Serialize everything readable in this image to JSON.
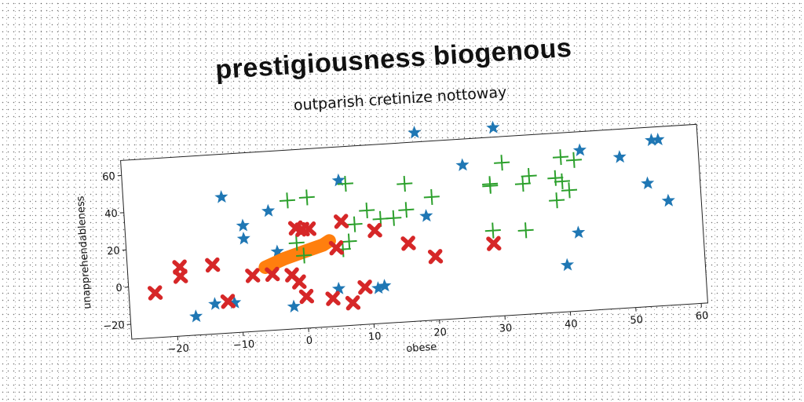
{
  "chart_data": {
    "type": "scatter",
    "title": "prestigiousness biogenous",
    "subtitle": "outparish cretinize nottoway",
    "xlabel": "obese",
    "ylabel": "unapprehendableness",
    "xlim": [
      -27,
      61
    ],
    "ylim": [
      -28,
      68
    ],
    "xticks": [
      -20,
      -10,
      0,
      10,
      20,
      30,
      40,
      50,
      60
    ],
    "yticks": [
      -20,
      0,
      20,
      40,
      60
    ],
    "grid": false,
    "series": [
      {
        "color": "#1f77b4",
        "marker": "star",
        "points": [
          [
            -17,
            -18
          ],
          [
            -14,
            -12
          ],
          [
            -11,
            -12
          ],
          [
            -2,
            -16
          ],
          [
            5,
            -8
          ],
          [
            11,
            -9
          ],
          [
            12,
            -8
          ],
          [
            -12,
            45
          ],
          [
            -9,
            29
          ],
          [
            -9,
            22
          ],
          [
            -5,
            36
          ],
          [
            -4,
            14
          ],
          [
            6,
            50
          ],
          [
            19,
            28
          ],
          [
            18,
            73
          ],
          [
            30,
            73
          ],
          [
            25,
            54
          ],
          [
            43,
            58
          ],
          [
            49,
            53
          ],
          [
            54,
            61
          ],
          [
            55,
            61
          ],
          [
            53,
            38
          ],
          [
            56,
            28
          ],
          [
            42,
            14
          ],
          [
            40,
            -3
          ]
        ]
      },
      {
        "color": "#ff7f0e",
        "marker": "line",
        "points": [
          [
            -6,
            6
          ],
          [
            -3,
            10
          ],
          [
            0,
            13
          ],
          [
            3,
            16
          ],
          [
            4,
            18
          ]
        ]
      },
      {
        "color": "#2ca02c",
        "marker": "plus",
        "points": [
          [
            -2,
            41
          ],
          [
            1,
            42
          ],
          [
            7,
            48
          ],
          [
            -1,
            18
          ],
          [
            0,
            11
          ],
          [
            6,
            13
          ],
          [
            7,
            17
          ],
          [
            8,
            26
          ],
          [
            10,
            33
          ],
          [
            12,
            28
          ],
          [
            14,
            28
          ],
          [
            16,
            32
          ],
          [
            16,
            46
          ],
          [
            20,
            38
          ],
          [
            29,
            18
          ],
          [
            29,
            42
          ],
          [
            29,
            43
          ],
          [
            31,
            54
          ],
          [
            34,
            17
          ],
          [
            34,
            42
          ],
          [
            35,
            46
          ],
          [
            39,
            32
          ],
          [
            39,
            44
          ],
          [
            40,
            42
          ],
          [
            40,
            55
          ],
          [
            41,
            37
          ],
          [
            42,
            53
          ]
        ]
      },
      {
        "color": "#d62728",
        "marker": "x",
        "points": [
          [
            -23,
            -4
          ],
          [
            -19,
            9
          ],
          [
            -19,
            4
          ],
          [
            -14,
            9
          ],
          [
            -12,
            -11
          ],
          [
            -8,
            2
          ],
          [
            -5,
            2
          ],
          [
            -2,
            1
          ],
          [
            -1,
            -3
          ],
          [
            0,
            -11
          ],
          [
            4,
            -13
          ],
          [
            7,
            -16
          ],
          [
            9,
            -8
          ],
          [
            -1,
            26
          ],
          [
            0,
            25
          ],
          [
            1,
            25
          ],
          [
            6,
            28
          ],
          [
            5,
            14
          ],
          [
            11,
            22
          ],
          [
            16,
            14
          ],
          [
            20,
            6
          ],
          [
            29,
            11
          ]
        ]
      }
    ]
  }
}
